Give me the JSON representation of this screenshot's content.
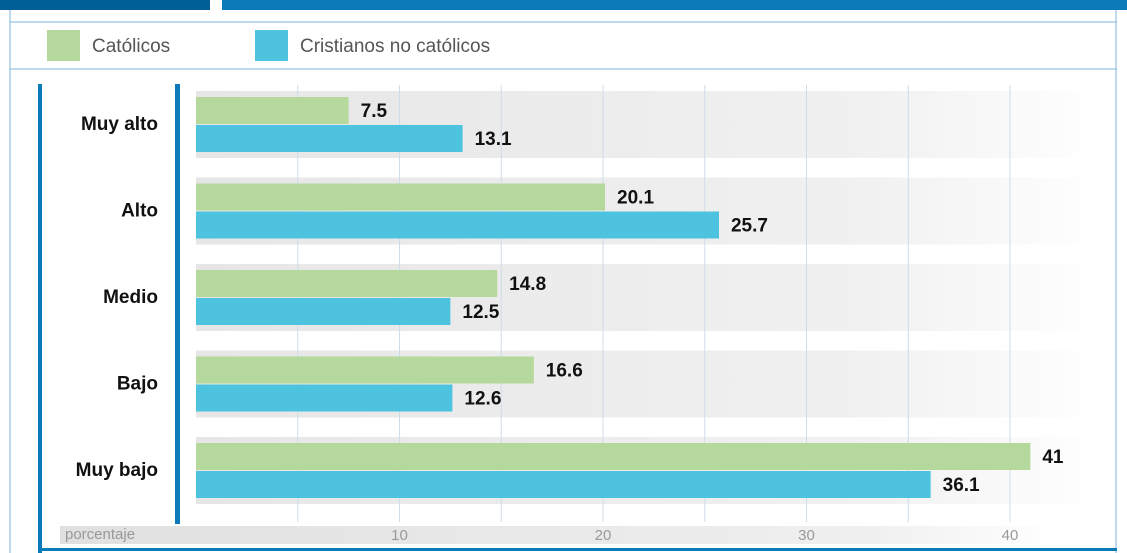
{
  "chart_data": {
    "type": "bar",
    "orientation": "horizontal",
    "categories": [
      "Muy alto",
      "Alto",
      "Medio",
      "Bajo",
      "Muy bajo"
    ],
    "series": [
      {
        "name": "Católicos",
        "color": "#b5d99c",
        "values": [
          7.5,
          20.1,
          14.8,
          16.6,
          41
        ]
      },
      {
        "name": "Cristianos no católicos",
        "color": "#4ec3df",
        "values": [
          13.1,
          25.7,
          12.5,
          12.6,
          36.1
        ]
      }
    ],
    "xlabel": "porcentaje",
    "xlim": [
      0,
      45
    ],
    "xticks": [
      10,
      20,
      30,
      40
    ],
    "minor_xticks": [
      5,
      15,
      25,
      35
    ],
    "grid": true
  }
}
